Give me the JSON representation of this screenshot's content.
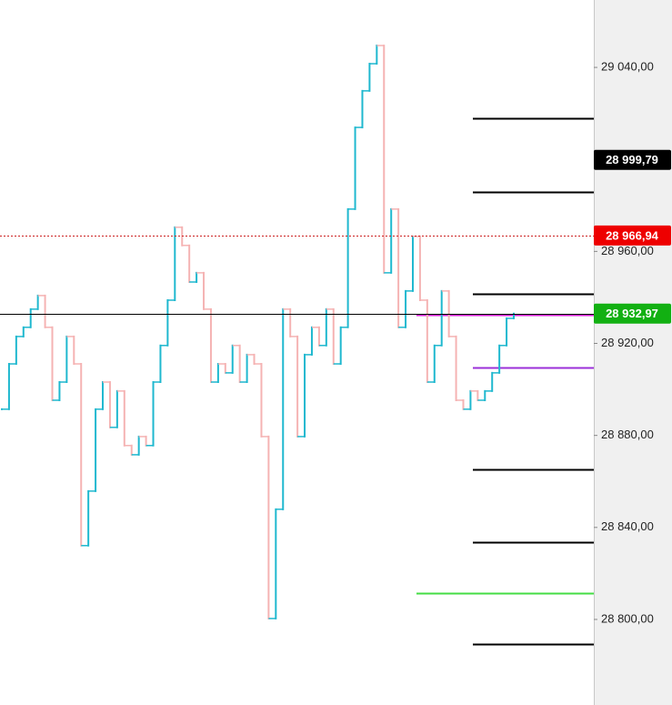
{
  "chart_data": {
    "type": "line",
    "values": [
      28891.4,
      28911.1,
      28923.0,
      28927.0,
      28934.9,
      28940.8,
      28927.0,
      28895.3,
      28903.2,
      28923.0,
      28911.1,
      28832.1,
      28855.8,
      28891.4,
      28903.2,
      28883.5,
      28899.3,
      28875.6,
      28871.6,
      28879.5,
      28875.6,
      28903.2,
      28919.1,
      28938.8,
      28970.5,
      28962.6,
      28946.7,
      28950.7,
      28934.9,
      28903.2,
      28911.1,
      28907.2,
      28919.1,
      28903.2,
      28915.1,
      28911.1,
      28879.5,
      28800.4,
      28847.9,
      28934.9,
      28923.0,
      28879.5,
      28915.1,
      28927.0,
      28919.1,
      28934.9,
      28911.1,
      28927.0,
      28978.4,
      29013.9,
      29029.8,
      29041.6,
      29049.5,
      28950.7,
      28978.4,
      28927.0,
      28942.8,
      28966.5,
      28938.8,
      28903.2,
      28919.1,
      28942.8,
      28923.0,
      28895.3,
      28891.4,
      28899.3,
      28895.3,
      28899.3,
      28907.2,
      28919.1,
      28930.9,
      28932.97
    ],
    "up_color": "#1fb8cf",
    "down_color": "#f5b3b3",
    "ylim": [
      28762.8,
      29069.3
    ],
    "yticks": [
      {
        "value": 28800,
        "label": "28 800,00"
      },
      {
        "value": 28840,
        "label": "28 840,00"
      },
      {
        "value": 28880,
        "label": "28 880,00"
      },
      {
        "value": 28920,
        "label": "28 920,00"
      },
      {
        "value": 28960,
        "label": "28 960,00"
      },
      {
        "value": 29040,
        "label": "29 040,00"
      }
    ],
    "levels": [
      {
        "value": 29017.9,
        "color": "#000000"
      },
      {
        "value": 28985.8,
        "color": "#000000"
      },
      {
        "value": 28941.5,
        "color": "#000000"
      },
      {
        "value": 28909.6,
        "color": "#9b30d9"
      },
      {
        "value": 28865.2,
        "color": "#000000"
      },
      {
        "value": 28833.6,
        "color": "#000000"
      },
      {
        "value": 28789.3,
        "color": "#000000"
      }
    ],
    "zones": [
      {
        "value": 28932.4,
        "color": "#d61ad6"
      },
      {
        "value": 28811.5,
        "color": "#44dd44"
      }
    ],
    "price_labels": [
      {
        "value": 28999.79,
        "label": "28 999,79",
        "color": "#000000"
      },
      {
        "value": 28966.94,
        "label": "28 966,94",
        "color": "#ee0000",
        "line_color": "#cc2222",
        "dotted": true
      },
      {
        "value": 28932.97,
        "label": "28 932,97",
        "color": "#12b012",
        "line_color": "#000000",
        "dotted": false
      }
    ]
  }
}
